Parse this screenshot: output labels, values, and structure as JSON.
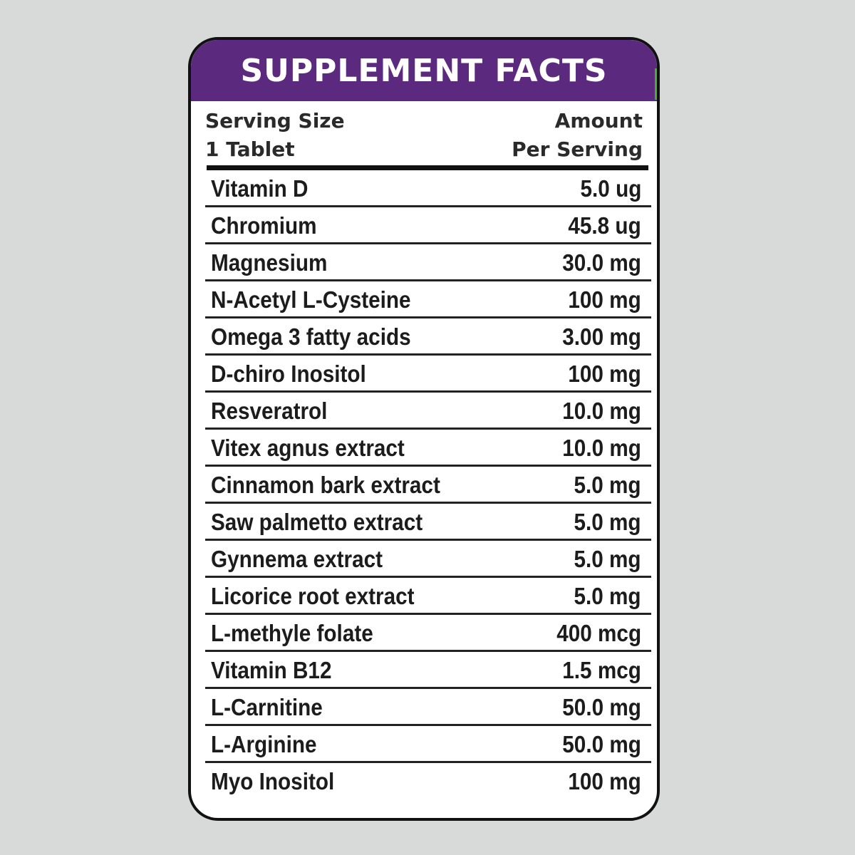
{
  "header": {
    "title": "SUPPLEMENT FACTS"
  },
  "serving": {
    "size_label": "Serving Size",
    "size_value": "1 Tablet",
    "amount_label": "Amount",
    "amount_sublabel": "Per Serving"
  },
  "ingredients": [
    {
      "name": "Vitamin D",
      "amount": "5.0 ug"
    },
    {
      "name": "Chromium",
      "amount": "45.8 ug"
    },
    {
      "name": "Magnesium",
      "amount": "30.0 mg"
    },
    {
      "name": "N-Acetyl L-Cysteine",
      "amount": "100 mg"
    },
    {
      "name": "Omega 3 fatty acids",
      "amount": "3.00 mg"
    },
    {
      "name": "D-chiro Inositol",
      "amount": "100 mg"
    },
    {
      "name": "Resveratrol",
      "amount": "10.0 mg"
    },
    {
      "name": "Vitex agnus extract",
      "amount": "10.0 mg"
    },
    {
      "name": "Cinnamon bark extract",
      "amount": "5.0 mg"
    },
    {
      "name": "Saw palmetto extract",
      "amount": "5.0 mg"
    },
    {
      "name": "Gynnema extract",
      "amount": "5.0 mg"
    },
    {
      "name": "Licorice root extract",
      "amount": "5.0 mg"
    },
    {
      "name": "L-methyle folate",
      "amount": "400 mcg"
    },
    {
      "name": "Vitamin B12",
      "amount": "1.5 mcg"
    },
    {
      "name": "L-Carnitine",
      "amount": "50.0 mg"
    },
    {
      "name": "L-Arginine",
      "amount": "50.0 mg"
    },
    {
      "name": "Myo Inositol",
      "amount": "100 mg"
    }
  ],
  "colors": {
    "header_bg": "#5b2a7e",
    "page_bg": "#d8dad9",
    "accent_green": "#4caa3a"
  }
}
